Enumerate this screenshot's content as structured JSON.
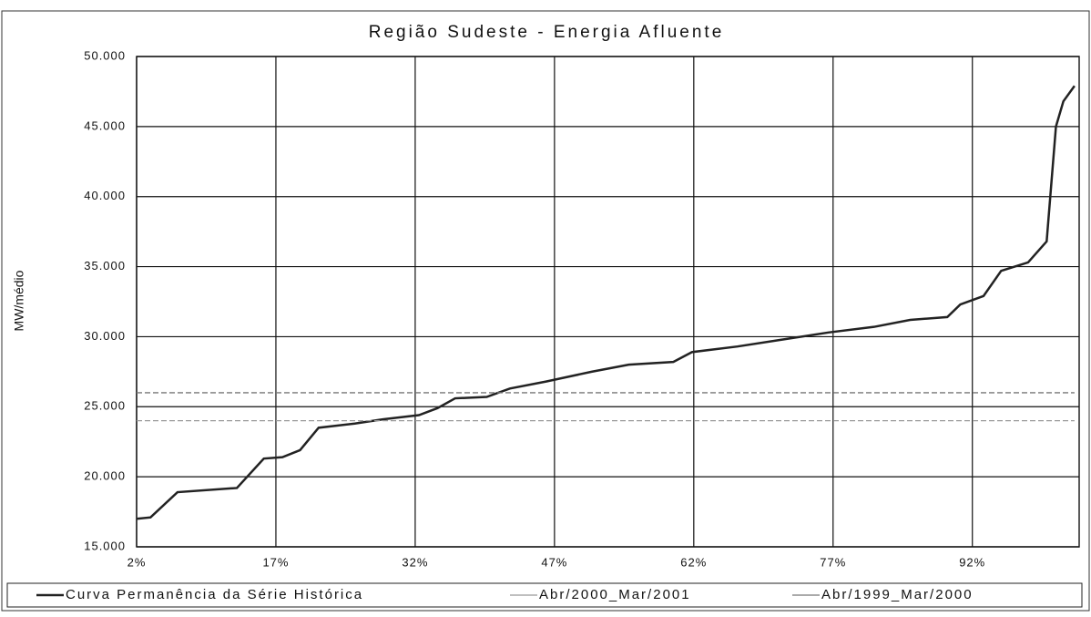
{
  "chart_data": {
    "type": "line",
    "title": "Região Sudeste - Energia Afluente",
    "y_label": "MW/médio",
    "xlim": [
      2,
      103.5
    ],
    "xticks": [
      {
        "value": 2,
        "label": "2%"
      },
      {
        "value": 17,
        "label": "17%"
      },
      {
        "value": 32,
        "label": "32%"
      },
      {
        "value": 47,
        "label": "47%"
      },
      {
        "value": 62,
        "label": "62%"
      },
      {
        "value": 77,
        "label": "77%"
      },
      {
        "value": 92,
        "label": "92%"
      }
    ],
    "ylim": [
      15000,
      50000
    ],
    "yticks": [
      {
        "value": 15000,
        "label": "15.000"
      },
      {
        "value": 20000,
        "label": "20.000"
      },
      {
        "value": 25000,
        "label": "25.000"
      },
      {
        "value": 30000,
        "label": "30.000"
      },
      {
        "value": 35000,
        "label": "35.000"
      },
      {
        "value": 40000,
        "label": "40.000"
      },
      {
        "value": 45000,
        "label": "45.000"
      },
      {
        "value": 50000,
        "label": "50.000"
      }
    ],
    "grid": true,
    "legend": "bottom",
    "series": [
      {
        "name": "Curva Permanência da Série Histórica",
        "color": "#222222",
        "x": [
          2,
          3.5,
          6.4,
          12.8,
          15.7,
          17.7,
          19.6,
          21.6,
          25.5,
          28.5,
          32.4,
          34.4,
          36.3,
          39.7,
          42.2,
          46.1,
          51,
          55,
          59.8,
          61.8,
          66.7,
          71.6,
          76.5,
          81.4,
          85.3,
          89.3,
          90.7,
          93.2,
          95.1,
          98,
          100,
          101,
          101.8,
          103
        ],
        "values": [
          17000,
          17100,
          18900,
          19200,
          21300,
          21400,
          21900,
          23500,
          23800,
          24100,
          24400,
          24900,
          25600,
          25700,
          26300,
          26800,
          27500,
          28000,
          28200,
          28900,
          29300,
          29800,
          30300,
          30700,
          31200,
          31400,
          32300,
          32900,
          34700,
          35300,
          36800,
          45000,
          46800,
          47900
        ]
      },
      {
        "name": "Abr/2000_Mar/2001",
        "color": "#999999",
        "x": [
          2,
          103
        ],
        "values": [
          24000,
          24000
        ]
      },
      {
        "name": "Abr/1999_Mar/2000",
        "color": "#777777",
        "x": [
          2,
          103
        ],
        "values": [
          26000,
          26000
        ]
      }
    ]
  }
}
